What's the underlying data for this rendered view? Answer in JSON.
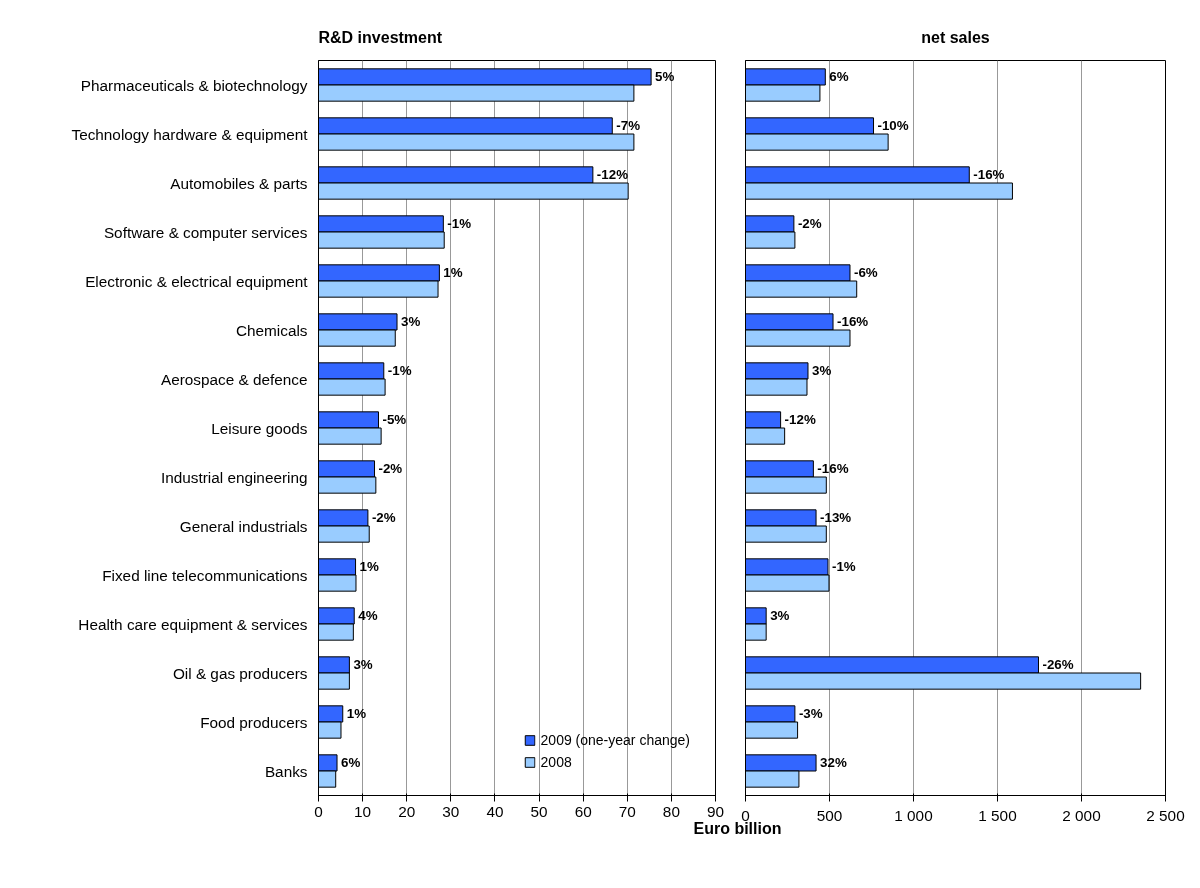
{
  "chart_data": [
    {
      "type": "bar",
      "orientation": "horizontal",
      "title": "R&D investment",
      "xlabel": "Euro billion",
      "categories": [
        "Pharmaceuticals & biotechnology",
        "Technology hardware & equipment",
        "Automobiles & parts",
        "Software & computer services",
        "Electronic & electrical equipment",
        "Chemicals",
        "Aerospace & defence",
        "Leisure goods",
        "Industrial engineering",
        "General industrials",
        "Fixed line telecommunications",
        "Health care equipment & services",
        "Oil & gas producers",
        "Food producers",
        "Banks"
      ],
      "series": [
        {
          "name": "2009 (one-year change)",
          "color": "#3366ff",
          "values": [
            75.4,
            66.6,
            62.2,
            28.3,
            27.4,
            17.8,
            14.8,
            13.6,
            12.7,
            11.2,
            8.4,
            8.1,
            7.0,
            5.5,
            4.2
          ]
        },
        {
          "name": "2008",
          "color": "#99ccff",
          "values": [
            71.5,
            71.5,
            70.2,
            28.5,
            27.1,
            17.4,
            15.1,
            14.2,
            13.0,
            11.5,
            8.5,
            7.9,
            7.0,
            5.1,
            3.9
          ]
        }
      ],
      "annotations": [
        {
          "text": "5%",
          "x": 75.4,
          "y": "Pharmaceuticals & biotechnology"
        },
        {
          "text": "-7%",
          "x": 66.6,
          "y": "Technology hardware & equipment"
        },
        {
          "text": "-12%",
          "x": 62.2,
          "y": "Automobiles & parts"
        },
        {
          "text": "-1%",
          "x": 28.3,
          "y": "Software & computer services"
        },
        {
          "text": "1%",
          "x": 27.4,
          "y": "Electronic & electrical equipment"
        },
        {
          "text": "3%",
          "x": 17.8,
          "y": "Chemicals"
        },
        {
          "text": "-1%",
          "x": 14.8,
          "y": "Aerospace & defence"
        },
        {
          "text": "-5%",
          "x": 13.6,
          "y": "Leisure goods"
        },
        {
          "text": "-2%",
          "x": 12.7,
          "y": "Industrial engineering"
        },
        {
          "text": "-2%",
          "x": 11.2,
          "y": "General industrials"
        },
        {
          "text": "1%",
          "x": 8.4,
          "y": "Fixed line telecommunications"
        },
        {
          "text": "4%",
          "x": 8.1,
          "y": "Health care equipment & services"
        },
        {
          "text": "3%",
          "x": 7.0,
          "y": "Oil & gas producers"
        },
        {
          "text": "1%",
          "x": 5.5,
          "y": "Food producers"
        },
        {
          "text": "6%",
          "x": 4.2,
          "y": "Banks"
        }
      ],
      "xlim": [
        0,
        90
      ],
      "xticks": [
        0,
        10,
        20,
        30,
        40,
        50,
        60,
        70,
        80,
        90
      ],
      "grid": "x",
      "legend": "bottom right"
    },
    {
      "type": "bar",
      "orientation": "horizontal",
      "title": "net sales",
      "categories": [
        "Pharmaceuticals & biotechnology",
        "Technology hardware & equipment",
        "Automobiles & parts",
        "Software & computer services",
        "Electronic & electrical equipment",
        "Chemicals",
        "Aerospace & defence",
        "Leisure goods",
        "Industrial engineering",
        "General industrials",
        "Fixed line telecommunications",
        "Health care equipment & services",
        "Oil & gas producers",
        "Food producers",
        "Banks"
      ],
      "series": [
        {
          "color": "#3366ff",
          "values": [
            475,
            762,
            1332,
            288,
            622,
            521,
            372,
            209,
            404,
            420,
            491,
            123,
            1744,
            294,
            420
          ]
        },
        {
          "color": "#99ccff",
          "values": [
            443,
            849,
            1589,
            294,
            662,
            622,
            366,
            233,
            481,
            481,
            497,
            123,
            2352,
            310,
            318
          ]
        }
      ],
      "annotations": [
        {
          "text": "6%",
          "x": 475,
          "y": "Pharmaceuticals & biotechnology"
        },
        {
          "text": "-10%",
          "x": 762,
          "y": "Technology hardware & equipment"
        },
        {
          "text": "-16%",
          "x": 1332,
          "y": "Automobiles & parts"
        },
        {
          "text": "-2%",
          "x": 288,
          "y": "Software & computer services"
        },
        {
          "text": "-6%",
          "x": 622,
          "y": "Electronic & electrical equipment"
        },
        {
          "text": "-16%",
          "x": 521,
          "y": "Chemicals"
        },
        {
          "text": "3%",
          "x": 372,
          "y": "Aerospace & defence"
        },
        {
          "text": "-12%",
          "x": 209,
          "y": "Leisure goods"
        },
        {
          "text": "-16%",
          "x": 404,
          "y": "Industrial engineering"
        },
        {
          "text": "-13%",
          "x": 420,
          "y": "General industrials"
        },
        {
          "text": "-1%",
          "x": 491,
          "y": "Fixed line telecommunications"
        },
        {
          "text": "3%",
          "x": 123,
          "y": "Health care equipment & services"
        },
        {
          "text": "-26%",
          "x": 1744,
          "y": "Oil & gas producers"
        },
        {
          "text": "-3%",
          "x": 294,
          "y": "Food producers"
        },
        {
          "text": "32%",
          "x": 420,
          "y": "Banks"
        }
      ],
      "xlim": [
        0,
        2500
      ],
      "xticks": [
        0,
        500,
        {
          "value": 1000,
          "label": "1 000"
        },
        {
          "value": 1500,
          "label": "1 500"
        },
        {
          "value": 2000,
          "label": "2 000"
        },
        {
          "value": 2500,
          "label": "2 500"
        }
      ],
      "grid": "x",
      "tick_labels": "x"
    }
  ]
}
